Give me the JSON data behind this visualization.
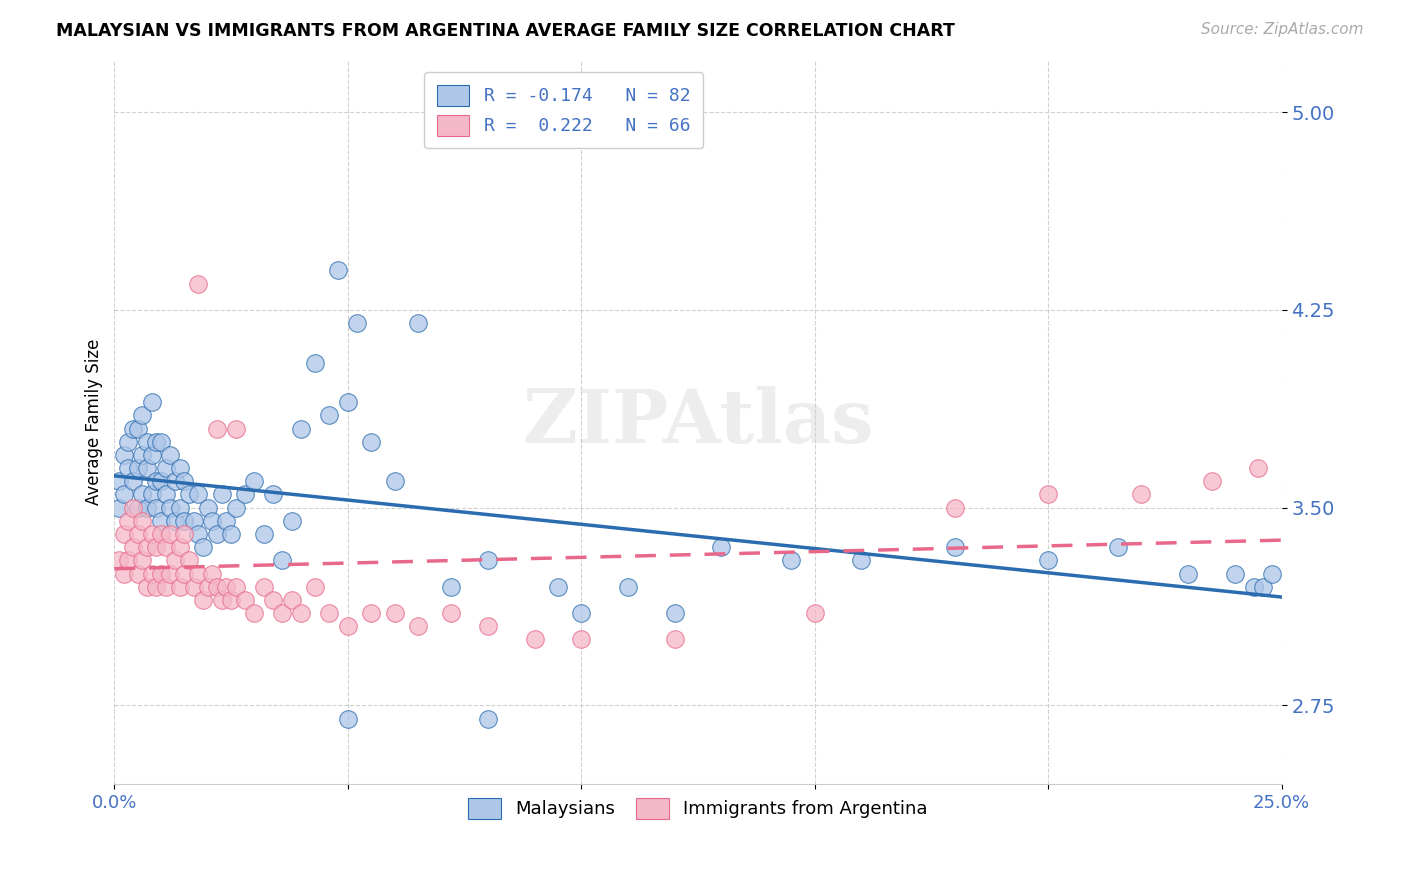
{
  "title": "MALAYSIAN VS IMMIGRANTS FROM ARGENTINA AVERAGE FAMILY SIZE CORRELATION CHART",
  "source": "Source: ZipAtlas.com",
  "ylabel": "Average Family Size",
  "ytick_values": [
    2.75,
    3.5,
    4.25,
    5.0
  ],
  "ytick_labels": [
    "2.75",
    "3.50",
    "4.25",
    "5.00"
  ],
  "ylim": [
    2.45,
    5.2
  ],
  "xlim": [
    0.0,
    0.25
  ],
  "xtick_values": [
    0.0,
    0.05,
    0.1,
    0.15,
    0.2,
    0.25
  ],
  "xtick_labels": [
    "0.0%",
    "",
    "",
    "",
    "",
    "25.0%"
  ],
  "legend_label_blue": "Malaysians",
  "legend_label_pink": "Immigrants from Argentina",
  "r_blue": -0.174,
  "n_blue": 82,
  "r_pink": 0.222,
  "n_pink": 66,
  "color_blue": "#aec6e8",
  "color_pink": "#f4b8c8",
  "trendline_blue_color": "#2b6cb0",
  "trendline_pink_color": "#e8688a",
  "blue_x": [
    0.001,
    0.001,
    0.002,
    0.002,
    0.003,
    0.003,
    0.004,
    0.004,
    0.005,
    0.005,
    0.005,
    0.006,
    0.006,
    0.006,
    0.007,
    0.007,
    0.007,
    0.008,
    0.008,
    0.008,
    0.009,
    0.009,
    0.009,
    0.01,
    0.01,
    0.01,
    0.011,
    0.011,
    0.012,
    0.012,
    0.013,
    0.013,
    0.014,
    0.014,
    0.015,
    0.015,
    0.016,
    0.017,
    0.018,
    0.018,
    0.019,
    0.02,
    0.021,
    0.022,
    0.023,
    0.024,
    0.025,
    0.026,
    0.028,
    0.03,
    0.032,
    0.034,
    0.036,
    0.038,
    0.04,
    0.043,
    0.046,
    0.05,
    0.055,
    0.06,
    0.065,
    0.072,
    0.08,
    0.095,
    0.11,
    0.13,
    0.145,
    0.16,
    0.18,
    0.2,
    0.215,
    0.23,
    0.24,
    0.244,
    0.246,
    0.248,
    0.05,
    0.08,
    0.1,
    0.12,
    0.048,
    0.052
  ],
  "blue_y": [
    3.5,
    3.6,
    3.55,
    3.7,
    3.65,
    3.75,
    3.6,
    3.8,
    3.5,
    3.65,
    3.8,
    3.55,
    3.7,
    3.85,
    3.5,
    3.65,
    3.75,
    3.55,
    3.7,
    3.9,
    3.5,
    3.6,
    3.75,
    3.45,
    3.6,
    3.75,
    3.55,
    3.65,
    3.5,
    3.7,
    3.45,
    3.6,
    3.5,
    3.65,
    3.45,
    3.6,
    3.55,
    3.45,
    3.4,
    3.55,
    3.35,
    3.5,
    3.45,
    3.4,
    3.55,
    3.45,
    3.4,
    3.5,
    3.55,
    3.6,
    3.4,
    3.55,
    3.3,
    3.45,
    3.8,
    4.05,
    3.85,
    3.9,
    3.75,
    3.6,
    4.2,
    3.2,
    3.3,
    3.2,
    3.2,
    3.35,
    3.3,
    3.3,
    3.35,
    3.3,
    3.35,
    3.25,
    3.25,
    3.2,
    3.2,
    3.25,
    2.7,
    2.7,
    3.1,
    3.1,
    4.4,
    4.2
  ],
  "pink_x": [
    0.001,
    0.002,
    0.002,
    0.003,
    0.003,
    0.004,
    0.004,
    0.005,
    0.005,
    0.006,
    0.006,
    0.007,
    0.007,
    0.008,
    0.008,
    0.009,
    0.009,
    0.01,
    0.01,
    0.011,
    0.011,
    0.012,
    0.012,
    0.013,
    0.014,
    0.014,
    0.015,
    0.015,
    0.016,
    0.017,
    0.018,
    0.019,
    0.02,
    0.021,
    0.022,
    0.023,
    0.024,
    0.025,
    0.026,
    0.028,
    0.03,
    0.032,
    0.034,
    0.036,
    0.038,
    0.04,
    0.043,
    0.046,
    0.05,
    0.055,
    0.06,
    0.065,
    0.072,
    0.08,
    0.09,
    0.1,
    0.12,
    0.15,
    0.18,
    0.2,
    0.22,
    0.235,
    0.245,
    0.018,
    0.022,
    0.026
  ],
  "pink_y": [
    3.3,
    3.25,
    3.4,
    3.3,
    3.45,
    3.35,
    3.5,
    3.25,
    3.4,
    3.3,
    3.45,
    3.2,
    3.35,
    3.25,
    3.4,
    3.2,
    3.35,
    3.25,
    3.4,
    3.2,
    3.35,
    3.25,
    3.4,
    3.3,
    3.2,
    3.35,
    3.25,
    3.4,
    3.3,
    3.2,
    3.25,
    3.15,
    3.2,
    3.25,
    3.2,
    3.15,
    3.2,
    3.15,
    3.2,
    3.15,
    3.1,
    3.2,
    3.15,
    3.1,
    3.15,
    3.1,
    3.2,
    3.1,
    3.05,
    3.1,
    3.1,
    3.05,
    3.1,
    3.05,
    3.0,
    3.0,
    3.0,
    3.1,
    3.5,
    3.55,
    3.55,
    3.6,
    3.65,
    4.35,
    3.8,
    3.8
  ]
}
